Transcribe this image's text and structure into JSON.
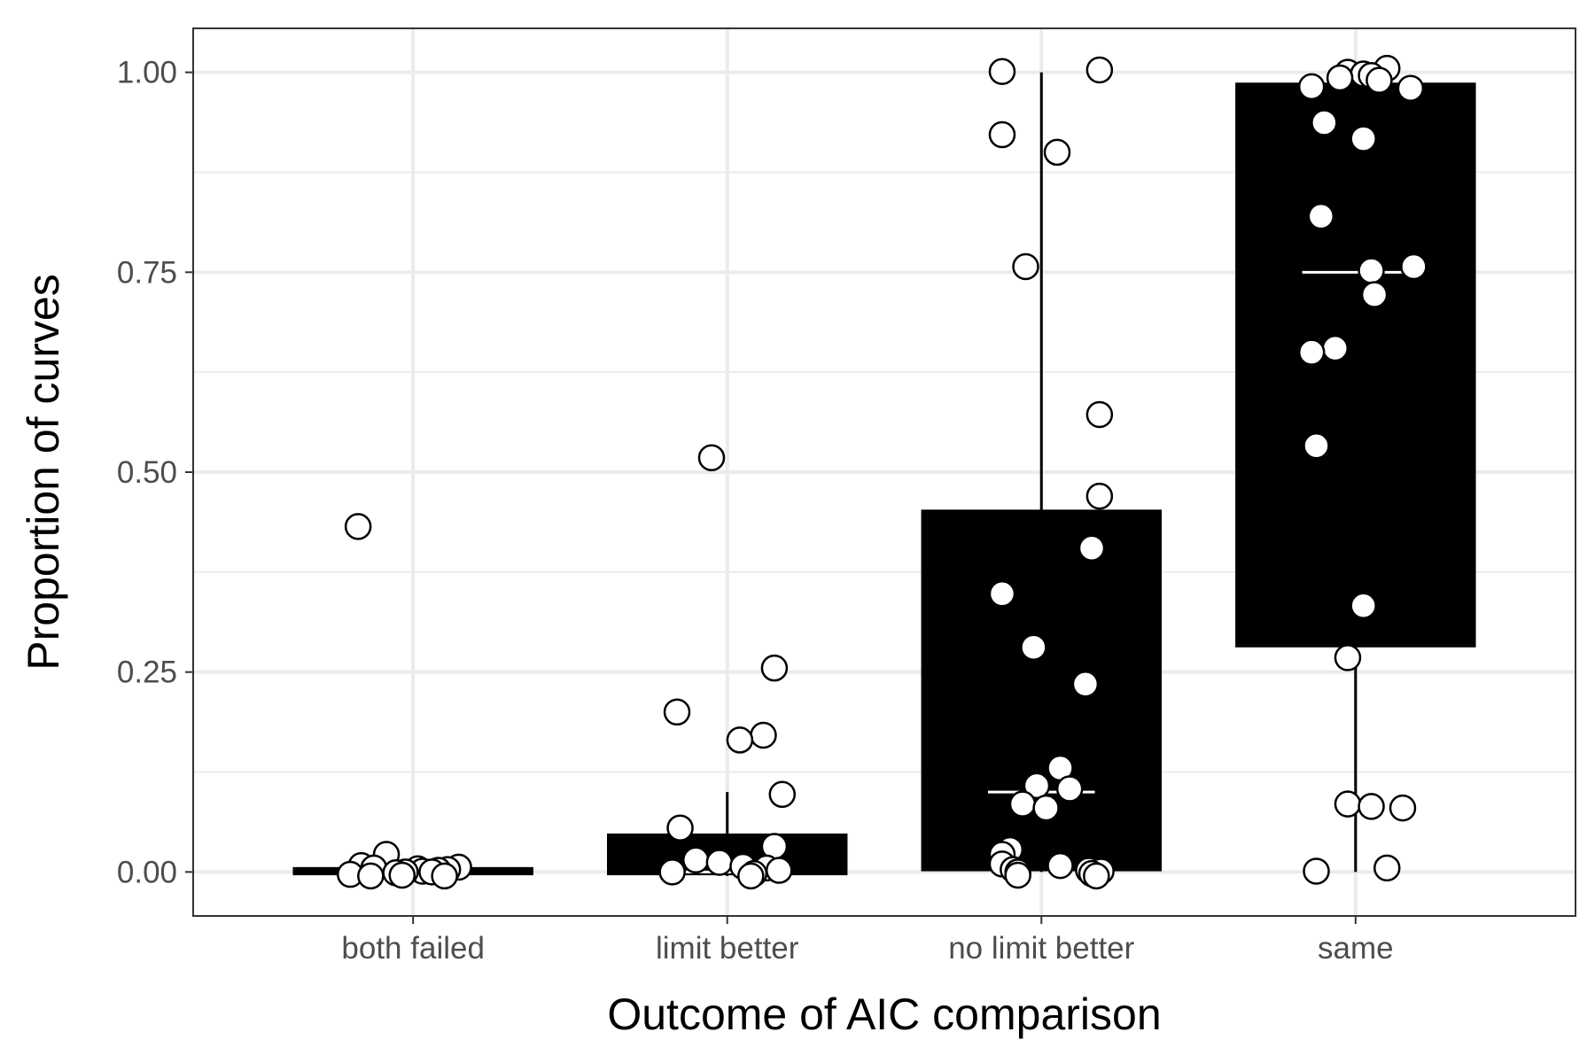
{
  "chart_data": {
    "type": "box",
    "xlabel": "Outcome of AIC comparison",
    "ylabel": "Proportion of curves",
    "ylim": [
      -0.055,
      1.055
    ],
    "y_ticks": [
      0.0,
      0.25,
      0.5,
      0.75,
      1.0
    ],
    "y_tick_labels": [
      "0.00",
      "0.25",
      "0.50",
      "0.75",
      "1.00"
    ],
    "y_minor_ticks": [
      0.125,
      0.375,
      0.625,
      0.875
    ],
    "grid": true,
    "legend": "none",
    "categories": [
      "both failed",
      "limit better",
      "no limit better",
      "same"
    ],
    "boxes": [
      {
        "category": "both failed",
        "q1": -0.003,
        "median": 0.0,
        "q3": 0.005,
        "whisker_low": -0.005,
        "whisker_high": 0.005
      },
      {
        "category": "limit better",
        "q1": -0.003,
        "median": 0.0,
        "q3": 0.047,
        "whisker_low": -0.005,
        "whisker_high": 0.1
      },
      {
        "category": "no limit better",
        "q1": 0.002,
        "median": 0.1,
        "q3": 0.452,
        "whisker_low": 0.0,
        "whisker_high": 1.0
      },
      {
        "category": "same",
        "q1": 0.282,
        "median": 0.75,
        "q3": 0.986,
        "whisker_low": 0.0,
        "whisker_high": 1.0
      }
    ],
    "points": [
      {
        "category": "both failed",
        "values": [
          0.432,
          0.022,
          0.008,
          0.006,
          0.005,
          0.004,
          0.003,
          0.002,
          0.001,
          0.0,
          0.0,
          -0.001,
          -0.003,
          -0.004,
          -0.005,
          -0.005
        ],
        "jitter": [
          -0.35,
          -0.17,
          -0.33,
          0.29,
          -0.25,
          0.03,
          0.22,
          0.16,
          0.06,
          -0.05,
          0.12,
          -0.11,
          -0.4,
          -0.07,
          -0.27,
          0.2
        ]
      },
      {
        "category": "limit better",
        "values": [
          0.518,
          0.255,
          0.2,
          0.171,
          0.165,
          0.097,
          0.055,
          0.032,
          0.015,
          0.012,
          0.007,
          0.005,
          0.002,
          0.0,
          -0.002,
          -0.005
        ],
        "jitter": [
          -0.1,
          0.3,
          -0.32,
          0.23,
          0.08,
          0.35,
          -0.3,
          0.3,
          -0.2,
          -0.05,
          0.1,
          0.25,
          0.33,
          -0.35,
          0.17,
          0.15
        ]
      },
      {
        "category": "no limit better",
        "values": [
          1.003,
          1.001,
          0.922,
          0.9,
          0.757,
          0.572,
          0.47,
          0.405,
          0.348,
          0.281,
          0.235,
          0.13,
          0.108,
          0.104,
          0.085,
          0.08,
          0.028,
          0.022,
          0.01,
          0.008,
          0.003,
          0.002,
          0.001,
          0.0,
          -0.002,
          -0.004,
          -0.005
        ],
        "jitter": [
          0.37,
          -0.25,
          -0.25,
          0.1,
          -0.1,
          0.37,
          0.37,
          0.32,
          -0.25,
          -0.05,
          0.28,
          0.12,
          -0.03,
          0.18,
          -0.12,
          0.03,
          -0.2,
          -0.25,
          -0.25,
          0.12,
          -0.18,
          0.3,
          0.38,
          -0.15,
          0.32,
          -0.15,
          0.35
        ]
      },
      {
        "category": "same",
        "values": [
          1.005,
          1.0,
          0.998,
          0.996,
          0.993,
          0.99,
          0.982,
          0.98,
          0.937,
          0.917,
          0.82,
          0.757,
          0.752,
          0.722,
          0.655,
          0.65,
          0.533,
          0.333,
          0.268,
          0.085,
          0.082,
          0.08,
          0.005,
          0.001
        ],
        "jitter": [
          0.2,
          -0.05,
          0.05,
          0.1,
          -0.1,
          0.15,
          -0.28,
          0.35,
          -0.2,
          0.05,
          -0.22,
          0.37,
          0.1,
          0.12,
          -0.13,
          -0.28,
          -0.25,
          0.05,
          -0.05,
          -0.05,
          0.1,
          0.3,
          0.2,
          -0.25
        ]
      }
    ],
    "colors": {
      "box_fill": "#000000",
      "median_line": "#ffffff",
      "point_fill": "#ffffff",
      "point_stroke": "#000000",
      "grid": "#ebebeb",
      "panel_border": "#333333"
    }
  }
}
